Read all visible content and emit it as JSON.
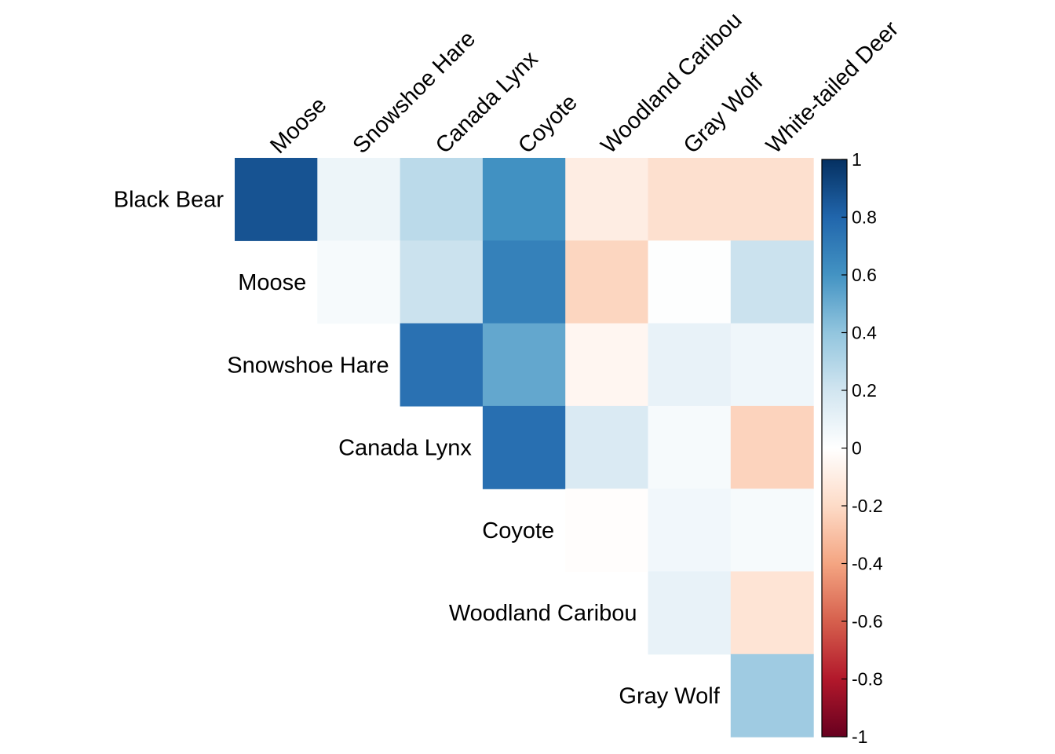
{
  "chart_data": {
    "type": "heatmap",
    "title": "",
    "rows": [
      "Black Bear",
      "Moose",
      "Snowshoe Hare",
      "Canada Lynx",
      "Coyote",
      "Woodland Caribou",
      "Gray Wolf"
    ],
    "columns": [
      "Moose",
      "Snowshoe Hare",
      "Canada Lynx",
      "Coyote",
      "Woodland Caribou",
      "Gray Wolf",
      "White-tailed Deer"
    ],
    "layout": "upper-triangular",
    "cells": [
      [
        0.87,
        0.08,
        0.27,
        0.61,
        -0.1,
        -0.17,
        -0.17
      ],
      [
        null,
        0.04,
        0.22,
        0.68,
        -0.22,
        0.01,
        0.22
      ],
      [
        null,
        null,
        0.75,
        0.52,
        -0.05,
        0.1,
        0.07
      ],
      [
        null,
        null,
        null,
        0.76,
        0.16,
        0.04,
        -0.23
      ],
      [
        null,
        null,
        null,
        null,
        -0.01,
        0.06,
        0.04
      ],
      [
        null,
        null,
        null,
        null,
        null,
        0.1,
        -0.15
      ],
      [
        null,
        null,
        null,
        null,
        null,
        null,
        0.36
      ]
    ],
    "colorbar": {
      "range": [
        -1,
        1
      ],
      "ticks": [
        "1",
        "0.8",
        "0.6",
        "0.4",
        "0.2",
        "0",
        "-0.2",
        "-0.4",
        "-0.6",
        "-0.8",
        "-1"
      ],
      "tick_values": [
        1,
        0.8,
        0.6,
        0.4,
        0.2,
        0,
        -0.2,
        -0.4,
        -0.6,
        -0.8,
        -1
      ],
      "palette": [
        "#67001F",
        "#B2182B",
        "#D6604D",
        "#F4A582",
        "#FDDBC7",
        "#FFFFFF",
        "#D1E5F0",
        "#92C5DE",
        "#4393C3",
        "#2166AC",
        "#053061"
      ]
    },
    "grid": false,
    "legend": "right"
  }
}
